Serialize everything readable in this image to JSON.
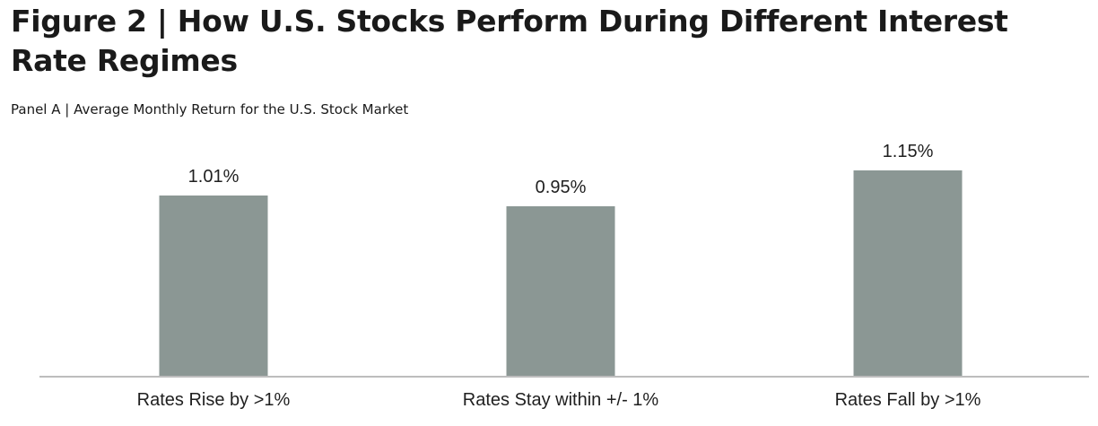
{
  "figure_title": "Figure 2 | How U.S. Stocks Perform During Different Interest Rate Regimes",
  "panel_title": "Panel A | Average Monthly Return for the U.S. Stock Market",
  "chart_data": {
    "type": "bar",
    "title": "Panel A | Average Monthly Return for the U.S. Stock Market",
    "categories": [
      "Rates Rise by >1%",
      "Rates Stay within +/- 1%",
      "Rates Fall by >1%"
    ],
    "values": [
      1.01,
      0.95,
      1.15
    ],
    "value_labels": [
      "1.01%",
      "0.95%",
      "1.15%"
    ],
    "ylim": [
      0,
      1.3
    ],
    "grid": false,
    "bar_color": "#8b9794"
  }
}
